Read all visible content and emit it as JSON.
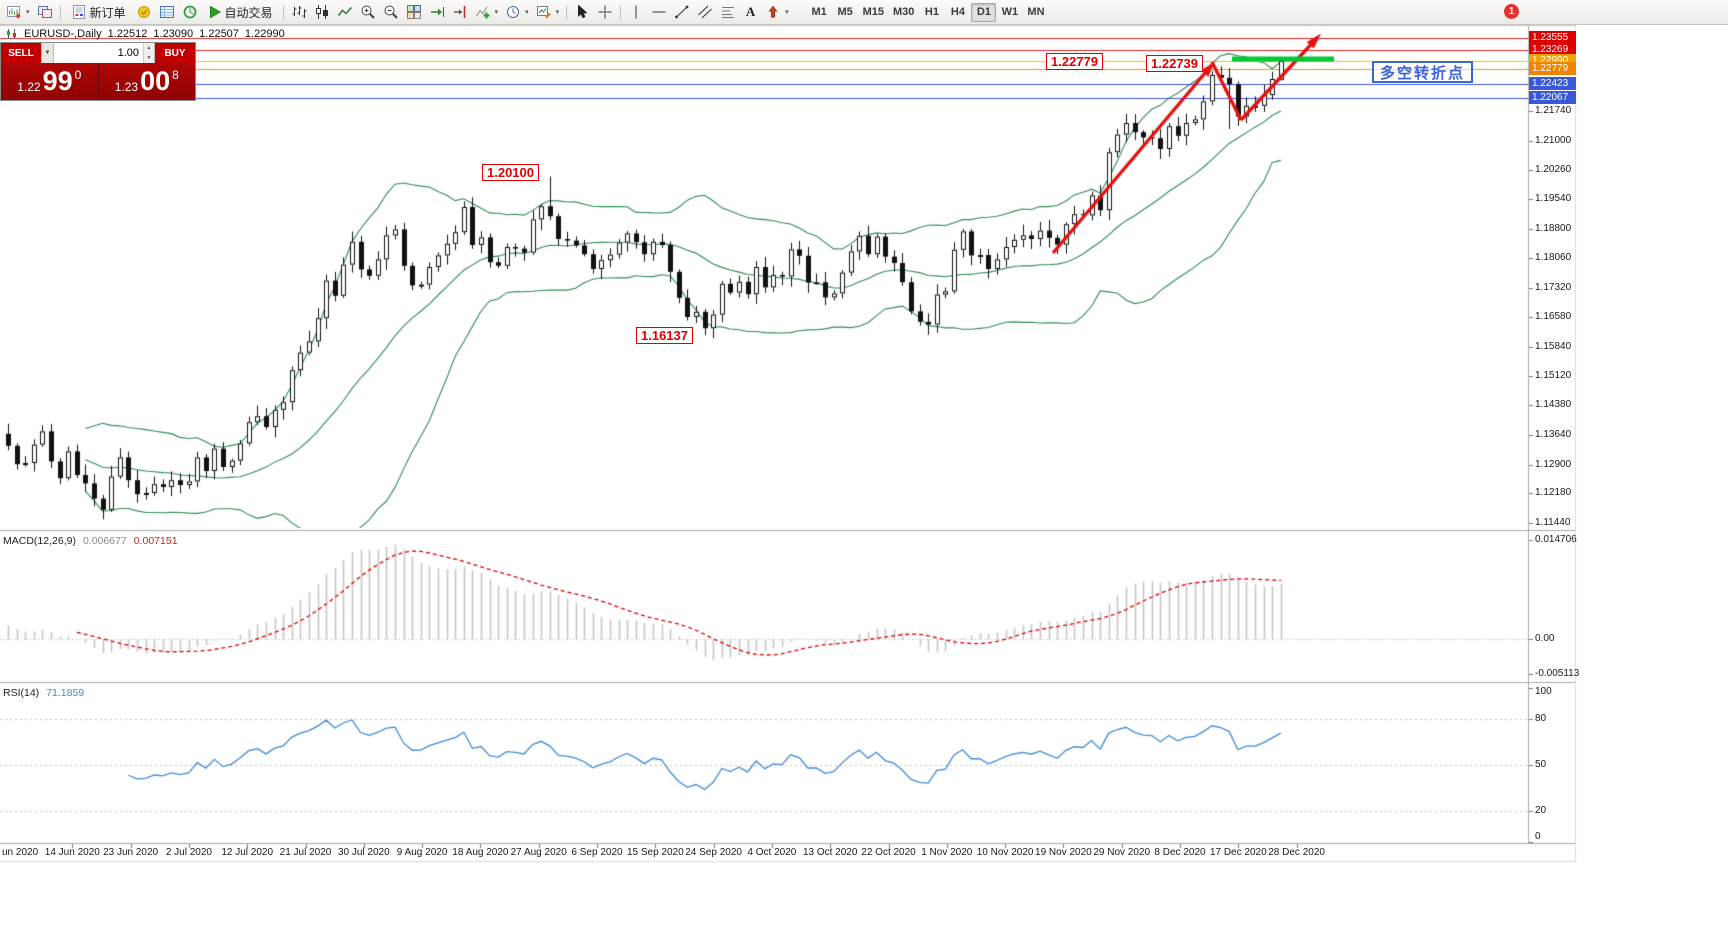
{
  "toolbar": {
    "new_order_label": "新订单",
    "autotrading_label": "自动交易",
    "text_tool_label": "A",
    "timeframes": [
      "M1",
      "M5",
      "M15",
      "M30",
      "H1",
      "H4",
      "D1",
      "W1",
      "MN"
    ],
    "active_timeframe": "D1",
    "notification_badge": "1"
  },
  "chart_header": {
    "symbol": "EURUSD-,Daily",
    "open": "1.22512",
    "high": "1.23090",
    "low": "1.22507",
    "close": "1.22990"
  },
  "trade_panel": {
    "sell_label": "SELL",
    "buy_label": "BUY",
    "volume": "1.00",
    "sell_price_head": "1.22",
    "sell_price_big": "99",
    "sell_price_sup": "0",
    "buy_price_head": "1.23",
    "buy_price_big": "00",
    "buy_price_sup": "8"
  },
  "annotations": {
    "high_label": "1.20100",
    "low_label": "1.16137",
    "res_label_1": "1.22779",
    "res_label_2": "1.22739",
    "turning_point_label": "多空转折点"
  },
  "price_scale": {
    "ticks": [
      1.2174,
      1.21,
      1.2026,
      1.1954,
      1.188,
      1.1806,
      1.1732,
      1.1658,
      1.1584,
      1.1512,
      1.1438,
      1.1364,
      1.129,
      1.1218,
      1.1144
    ],
    "highlights": [
      {
        "text": "1.23555",
        "value": 1.23555,
        "bg": "#dd0000",
        "line": "#dd2222"
      },
      {
        "text": "1.23269",
        "value": 1.23269,
        "bg": "#dd0000",
        "line": "#dd2222"
      },
      {
        "text": "1.22990",
        "value": 1.2299,
        "bg": "#f0a500",
        "line": "#f3c200"
      },
      {
        "text": "1.22779",
        "value": 1.22779,
        "bg": "#ee8400",
        "line": "#f09a00"
      },
      {
        "text": "1.22423",
        "value": 1.22423,
        "bg": "#3a57d7",
        "line": "#3a57d7"
      },
      {
        "text": "1.22067",
        "value": 1.22067,
        "bg": "#3a57d7",
        "line": "#3a57d7"
      }
    ]
  },
  "macd_panel": {
    "label": "MACD(12,26,9)",
    "value_main": "0.006677",
    "value_signal": "0.007151",
    "axis": [
      {
        "text": "0.014706",
        "value": 0.014706
      },
      {
        "text": "0.00",
        "value": 0
      },
      {
        "text": "-0.005113",
        "value": -0.005113
      }
    ]
  },
  "rsi_panel": {
    "label": "RSI(14)",
    "value": "71.1859",
    "axis": [
      {
        "text": "100",
        "value": 100
      },
      {
        "text": "80",
        "value": 80
      },
      {
        "text": "50",
        "value": 50
      },
      {
        "text": "20",
        "value": 20
      },
      {
        "text": "0",
        "value": 0
      }
    ],
    "levels": [
      80,
      50,
      20
    ]
  },
  "time_axis": [
    "un 2020",
    "14 Jun 2020",
    "23 Jun 2020",
    "2 Jul 2020",
    "12 Jul 2020",
    "21 Jul 2020",
    "30 Jul 2020",
    "9 Aug 2020",
    "18 Aug 2020",
    "27 Aug 2020",
    "6 Sep 2020",
    "15 Sep 2020",
    "24 Sep 2020",
    "4 Oct 2020",
    "13 Oct 2020",
    "22 Oct 2020",
    "1 Nov 2020",
    "10 Nov 2020",
    "19 Nov 2020",
    "29 Nov 2020",
    "8 Dec 2020",
    "17 Dec 2020",
    "28 Dec 2020"
  ],
  "chart_data": {
    "type": "candlestick",
    "symbol": "EURUSD",
    "period": "Daily",
    "closes": [
      1.1337,
      1.1291,
      1.1294,
      1.134,
      1.1373,
      1.1298,
      1.1256,
      1.1323,
      1.1264,
      1.1243,
      1.1205,
      1.1177,
      1.126,
      1.1308,
      1.1251,
      1.1216,
      1.1219,
      1.1241,
      1.1234,
      1.1251,
      1.1239,
      1.1248,
      1.1308,
      1.1274,
      1.133,
      1.1284,
      1.13,
      1.1343,
      1.1396,
      1.1411,
      1.1384,
      1.1427,
      1.1446,
      1.1526,
      1.157,
      1.1598,
      1.1656,
      1.175,
      1.1712,
      1.179,
      1.1847,
      1.1778,
      1.1762,
      1.1803,
      1.1863,
      1.1878,
      1.1787,
      1.1738,
      1.174,
      1.1784,
      1.1813,
      1.1842,
      1.1871,
      1.1934,
      1.1839,
      1.1858,
      1.1796,
      1.1787,
      1.1834,
      1.183,
      1.182,
      1.1903,
      1.1936,
      1.1911,
      1.1854,
      1.185,
      1.1838,
      1.1816,
      1.1779,
      1.1801,
      1.1815,
      1.1845,
      1.1868,
      1.1846,
      1.1816,
      1.1847,
      1.1839,
      1.1772,
      1.1707,
      1.1659,
      1.1672,
      1.1631,
      1.1665,
      1.1742,
      1.172,
      1.1747,
      1.1716,
      1.1784,
      1.1733,
      1.1764,
      1.176,
      1.1828,
      1.1812,
      1.1745,
      1.1746,
      1.1708,
      1.1718,
      1.177,
      1.1823,
      1.1862,
      1.1816,
      1.186,
      1.181,
      1.1794,
      1.1746,
      1.1673,
      1.1647,
      1.164,
      1.1715,
      1.1723,
      1.1827,
      1.1873,
      1.1813,
      1.1814,
      1.1779,
      1.1803,
      1.1834,
      1.1852,
      1.1863,
      1.1854,
      1.1875,
      1.1857,
      1.184,
      1.1891,
      1.1916,
      1.1913,
      1.1963,
      1.1926,
      1.2071,
      1.2115,
      1.2144,
      1.2121,
      1.2108,
      1.2106,
      1.2079,
      1.2136,
      1.2112,
      1.2144,
      1.2153,
      1.2198,
      1.2264,
      1.2257,
      1.2241,
      1.216,
      1.2187,
      1.2187,
      1.2214,
      1.2254,
      1.2299
    ],
    "overrides": {
      "63": {
        "h": 1.201
      },
      "81": {
        "l": 1.16137
      },
      "140": {
        "h": 1.22739
      },
      "142": {
        "l": 1.2129
      },
      "148": {
        "o": 1.22512,
        "h": 1.2309,
        "l": 1.22507,
        "c": 1.2299
      }
    },
    "bollinger": {
      "period": 20,
      "deviation": 2
    },
    "indicators": {
      "macd": [
        12,
        26,
        9
      ],
      "rsi": 14
    },
    "levels": {
      "resistance": [
        1.23555,
        1.23269
      ],
      "orange": [
        1.22779
      ],
      "current": 1.2299,
      "support_blue": [
        1.22423,
        1.22067
      ],
      "green_zone": 1.23
    }
  }
}
